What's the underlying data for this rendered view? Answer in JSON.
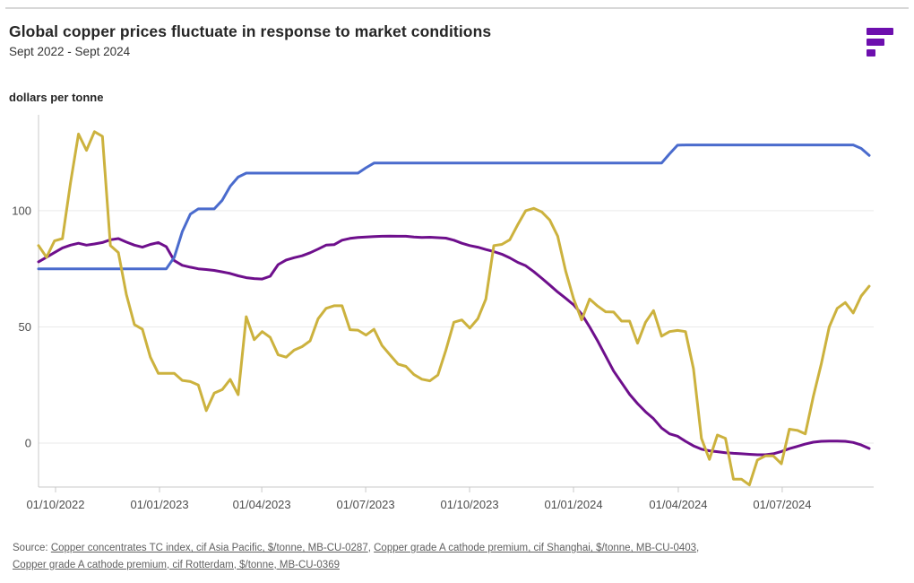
{
  "header": {
    "title": "Global copper prices fluctuate in response to market conditions",
    "subtitle": "Sept 2022 - Sept 2024",
    "unit_label": "dollars per tonne"
  },
  "logo": {
    "name": "fastmarkets-logo",
    "color": "#6d0fae"
  },
  "source": {
    "prefix": "Source: ",
    "sep1": ", ",
    "sep2": ",",
    "links": [
      "Copper concentrates TC index, cif Asia Pacific, $/tonne, MB-CU-0287",
      "Copper grade A cathode premium, cif Shanghai, $/tonne, MB-CU-0403",
      "Copper grade A cathode premium, cif Rotterdam, $/tonne, MB-CU-0369"
    ]
  },
  "chart_data": {
    "type": "line",
    "title": "Global copper prices fluctuate in response to market conditions",
    "subtitle": "Sept 2022 - Sept 2024",
    "ylabel": "dollars per tonne",
    "xlabel": "",
    "grid": true,
    "legend": false,
    "ylim": [
      -18.9,
      140.5
    ],
    "weeks_total": 104,
    "x_start": "mid-Sept 2022",
    "x_end": "mid-Sept 2024",
    "colors": {
      "grid": "#e9e9e9",
      "axis": "#c9c9c9",
      "tick_text": "#4d4d4d"
    },
    "y_axis": {
      "ticks": [
        {
          "value": 0,
          "label": "0"
        },
        {
          "value": 50,
          "label": "50"
        },
        {
          "value": 100,
          "label": "100"
        }
      ]
    },
    "x_axis": {
      "ticks": [
        {
          "week": 2.13,
          "label": "01/10/2022"
        },
        {
          "week": 15.15,
          "label": "01/01/2023"
        },
        {
          "week": 27.95,
          "label": "01/04/2023"
        },
        {
          "week": 40.96,
          "label": "01/07/2023"
        },
        {
          "week": 53.97,
          "label": "01/10/2023"
        },
        {
          "week": 66.98,
          "label": "01/01/2024"
        },
        {
          "week": 80.1,
          "label": "01/04/2024"
        },
        {
          "week": 93.11,
          "label": "01/07/2024"
        }
      ]
    },
    "series": [
      {
        "id": "tc-index",
        "name": "Copper concentrates TC index, cif Asia Pacific, $/tonne, MB-CU-0287",
        "color": "#6e0f8c",
        "values": [
          78,
          80,
          82,
          84,
          85.2,
          86,
          85.2,
          85.7,
          86.3,
          87.5,
          88,
          86.5,
          85.2,
          84.3,
          85.5,
          86.3,
          84.5,
          78.5,
          76.5,
          75.7,
          75,
          74.7,
          74.3,
          73.7,
          73,
          72,
          71.2,
          70.8,
          70.6,
          71.8,
          76.8,
          78.8,
          79.8,
          80.6,
          81.9,
          83.5,
          85.2,
          85.4,
          87.3,
          88.1,
          88.5,
          88.7,
          88.9,
          89,
          89.1,
          89,
          89,
          88.7,
          88.5,
          88.6,
          88.4,
          88.2,
          87.3,
          86,
          85,
          84.3,
          83.3,
          82.4,
          81.3,
          79.7,
          77.8,
          76.3,
          73.8,
          71,
          68,
          65,
          62.3,
          59.5,
          55.5,
          50,
          44,
          37.5,
          31,
          26,
          21,
          17,
          13.5,
          10.5,
          6.5,
          4,
          3,
          0.8,
          -1.2,
          -2.6,
          -3.3,
          -3.7,
          -4.1,
          -4.4,
          -4.6,
          -4.8,
          -5,
          -5,
          -4.6,
          -3.6,
          -2.4,
          -1.4,
          -0.4,
          0.4,
          0.8,
          0.9,
          0.9,
          0.8,
          0.3,
          -0.8,
          -2.3
        ]
      },
      {
        "id": "rotterdam-premium",
        "name": "Copper grade A cathode premium, cif Rotterdam, $/tonne, MB-CU-0369",
        "color": "#4a6bcd",
        "values": [
          75,
          75,
          75,
          75,
          75,
          75,
          75,
          75,
          75,
          75,
          75,
          75,
          75,
          75,
          75,
          75,
          75,
          80,
          91,
          98.5,
          100.8,
          100.8,
          100.8,
          104.5,
          110.5,
          114.5,
          116.2,
          116.2,
          116.2,
          116.2,
          116.2,
          116.2,
          116.2,
          116.2,
          116.2,
          116.2,
          116.2,
          116.2,
          116.2,
          116.2,
          116.2,
          118.5,
          120.5,
          120.5,
          120.5,
          120.5,
          120.5,
          120.5,
          120.5,
          120.5,
          120.5,
          120.5,
          120.5,
          120.5,
          120.5,
          120.5,
          120.5,
          120.5,
          120.5,
          120.5,
          120.5,
          120.5,
          120.5,
          120.5,
          120.5,
          120.5,
          120.5,
          120.5,
          120.5,
          120.5,
          120.5,
          120.5,
          120.5,
          120.5,
          120.5,
          120.5,
          120.5,
          120.5,
          120.5,
          124.5,
          128.2,
          128.3,
          128.3,
          128.3,
          128.3,
          128.3,
          128.3,
          128.3,
          128.3,
          128.3,
          128.3,
          128.3,
          128.3,
          128.3,
          128.3,
          128.3,
          128.3,
          128.3,
          128.3,
          128.3,
          128.3,
          128.3,
          128.3,
          126.8,
          123.8
        ]
      },
      {
        "id": "shanghai-premium",
        "name": "Copper grade A cathode premium, cif Shanghai, $/tonne, MB-CU-0403",
        "color": "#ccb23e",
        "values": [
          85,
          80,
          87,
          88,
          112,
          133,
          126,
          134,
          132,
          85,
          82,
          64,
          51,
          49,
          37,
          30,
          30,
          30,
          27,
          26.5,
          25,
          14,
          21.5,
          23,
          27.4,
          20.8,
          54.4,
          44.5,
          48,
          45.5,
          38,
          37,
          40,
          41.5,
          44,
          53.5,
          58,
          59.1,
          59.1,
          48.8,
          48.6,
          46.5,
          49,
          42,
          38,
          34,
          33,
          29.5,
          27.5,
          26.8,
          29.3,
          40,
          52,
          53,
          49.5,
          53.5,
          62,
          85,
          85.5,
          87.5,
          94,
          100,
          101,
          99.5,
          96,
          89,
          74,
          62,
          53,
          62,
          59,
          56.5,
          56.4,
          52.5,
          52.5,
          43,
          52,
          57,
          46,
          48,
          48.5,
          48,
          32,
          2,
          -7,
          3.5,
          2,
          -15.5,
          -15.5,
          -18,
          -7.3,
          -5.5,
          -5.5,
          -8.9,
          6,
          5.5,
          4,
          20,
          34,
          50,
          58,
          60.5,
          56,
          63.3,
          67.5
        ]
      }
    ]
  }
}
